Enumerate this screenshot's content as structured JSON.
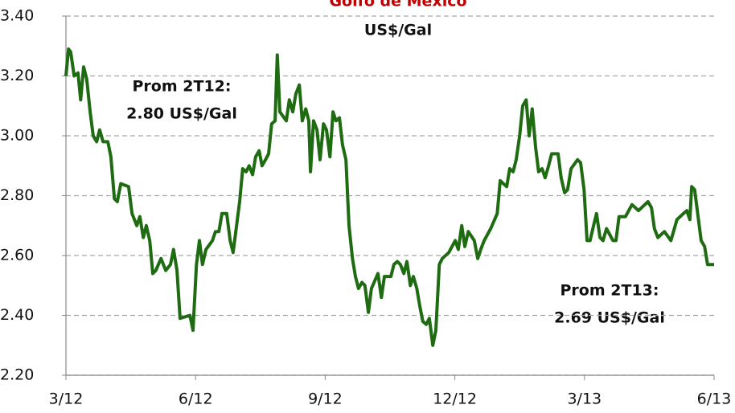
{
  "chart_data": {
    "type": "line",
    "title": "Golfo de México",
    "subtitle": "US$/Gal",
    "annotations": [
      "Prom 2T12:",
      "2.80 US$/Gal",
      "Prom 2T13:",
      "2.69 US$/Gal"
    ],
    "x": [
      0,
      0.06,
      0.11,
      0.19,
      0.28,
      0.34,
      0.41,
      0.48,
      0.56,
      0.63,
      0.71,
      0.78,
      0.86,
      0.97,
      1.04,
      1.12,
      1.19,
      1.27,
      1.45,
      1.53,
      1.64,
      1.71,
      1.79,
      1.86,
      1.94,
      2.01,
      2.08,
      2.2,
      2.31,
      2.42,
      2.49,
      2.57,
      2.64,
      2.87,
      2.94,
      3.02,
      3.09,
      3.16,
      3.24,
      3.39,
      3.46,
      3.54,
      3.61,
      3.72,
      3.8,
      3.87,
      3.95,
      4.02,
      4.09,
      4.17,
      4.24,
      4.32,
      4.39,
      4.47,
      4.54,
      4.62,
      4.69,
      4.76,
      4.84,
      4.89,
      4.95,
      5.1,
      5.17,
      5.25,
      5.32,
      5.4,
      5.47,
      5.55,
      5.62,
      5.66,
      5.73,
      5.81,
      5.88,
      5.96,
      6.03,
      6.11,
      6.18,
      6.25,
      6.33,
      6.4,
      6.48,
      6.55,
      6.63,
      6.7,
      6.77,
      6.85,
      6.92,
      7,
      7.07,
      7.22,
      7.3,
      7.37,
      7.52,
      7.59,
      7.67,
      7.74,
      7.82,
      7.89,
      7.97,
      8.04,
      8.12,
      8.19,
      8.26,
      8.34,
      8.41,
      8.49,
      8.56,
      8.64,
      8.71,
      8.86,
      9.01,
      9.08,
      9.16,
      9.23,
      9.31,
      9.45,
      9.53,
      9.6,
      9.68,
      9.83,
      9.98,
      10.05,
      10.2,
      10.27,
      10.35,
      10.42,
      10.5,
      10.57,
      10.65,
      10.72,
      10.79,
      10.87,
      10.94,
      11.02,
      11.09,
      11.17,
      11.24,
      11.39,
      11.46,
      11.54,
      11.61,
      11.69,
      11.84,
      11.91,
      11.99,
      12.06,
      12.13,
      12.21,
      12.28,
      12.36,
      12.43,
      12.51,
      12.66,
      12.73,
      12.8,
      12.95,
      13.1,
      13.25,
      13.47,
      13.55,
      13.62,
      13.7,
      13.85,
      14,
      14.14,
      14.29,
      14.37,
      14.44,
      14.48,
      14.55,
      14.63,
      14.7,
      14.78,
      14.85,
      15
    ],
    "series": [
      {
        "color": "#1e6b12",
        "values": [
          3.2,
          3.29,
          3.28,
          3.2,
          3.21,
          3.12,
          3.23,
          3.19,
          3.08,
          3.0,
          2.98,
          3.02,
          2.98,
          2.98,
          2.93,
          2.79,
          2.78,
          2.84,
          2.83,
          2.74,
          2.7,
          2.73,
          2.66,
          2.7,
          2.65,
          2.54,
          2.55,
          2.59,
          2.55,
          2.57,
          2.62,
          2.55,
          2.39,
          2.4,
          2.35,
          2.57,
          2.65,
          2.57,
          2.62,
          2.65,
          2.68,
          2.68,
          2.74,
          2.74,
          2.65,
          2.61,
          2.7,
          2.78,
          2.89,
          2.88,
          2.9,
          2.87,
          2.93,
          2.95,
          2.9,
          2.92,
          2.94,
          3.04,
          3.05,
          3.27,
          3.08,
          3.05,
          3.12,
          3.08,
          3.14,
          3.17,
          3.05,
          3.09,
          3.05,
          2.88,
          3.05,
          3.02,
          2.92,
          3.04,
          3.02,
          2.93,
          3.08,
          3.05,
          3.06,
          2.97,
          2.92,
          2.7,
          2.59,
          2.53,
          2.49,
          2.51,
          2.5,
          2.41,
          2.49,
          2.54,
          2.46,
          2.53,
          2.53,
          2.57,
          2.58,
          2.57,
          2.54,
          2.58,
          2.5,
          2.53,
          2.49,
          2.43,
          2.38,
          2.37,
          2.39,
          2.3,
          2.35,
          2.57,
          2.59,
          2.61,
          2.65,
          2.62,
          2.7,
          2.63,
          2.68,
          2.65,
          2.59,
          2.62,
          2.65,
          2.69,
          2.74,
          2.85,
          2.83,
          2.89,
          2.88,
          2.92,
          3.0,
          3.1,
          3.12,
          3.0,
          3.09,
          2.96,
          2.88,
          2.89,
          2.86,
          2.9,
          2.94,
          2.94,
          2.86,
          2.81,
          2.82,
          2.89,
          2.92,
          2.91,
          2.82,
          2.65,
          2.65,
          2.7,
          2.74,
          2.66,
          2.65,
          2.69,
          2.65,
          2.65,
          2.73,
          2.73,
          2.77,
          2.75,
          2.78,
          2.76,
          2.69,
          2.66,
          2.68,
          2.65,
          2.72,
          2.74,
          2.75,
          2.72,
          2.83,
          2.82,
          2.73,
          2.65,
          2.63,
          2.57,
          2.57
        ]
      }
    ],
    "xlim": [
      0,
      15
    ],
    "xticks": [
      {
        "value": 0,
        "label": "3/12"
      },
      {
        "value": 3,
        "label": "6/12"
      },
      {
        "value": 6,
        "label": "9/12"
      },
      {
        "value": 9,
        "label": "12/12"
      },
      {
        "value": 12,
        "label": "3/13"
      },
      {
        "value": 15,
        "label": "6/13"
      }
    ],
    "ylim": [
      2.2,
      3.4
    ],
    "yticks": [
      {
        "value": 2.2,
        "label": "2.20"
      },
      {
        "value": 2.4,
        "label": "2.40"
      },
      {
        "value": 2.6,
        "label": "2.60"
      },
      {
        "value": 2.8,
        "label": "2.80"
      },
      {
        "value": 3.0,
        "label": "3.00"
      },
      {
        "value": 3.2,
        "label": "3.20"
      },
      {
        "value": 3.4,
        "label": "3.40"
      }
    ],
    "grid": true
  }
}
